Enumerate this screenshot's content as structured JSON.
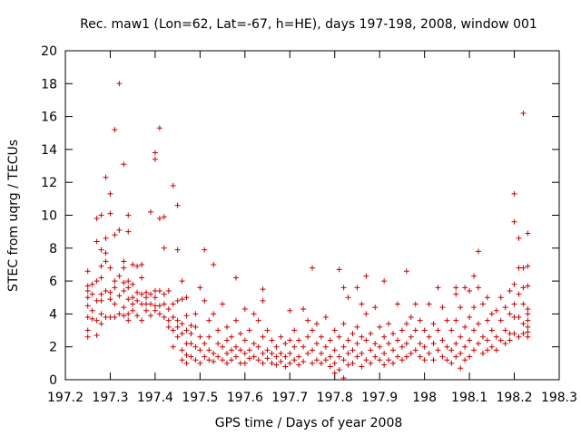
{
  "chart_data": {
    "type": "scatter",
    "title": "Rec. maw1 (Lon=62, Lat=-67, h=HE), days 197-198, 2008, window 001",
    "xlabel": "GPS time / Days of year 2008",
    "ylabel": "STEC from uqrg / TECUs",
    "xlim": [
      197.2,
      198.3
    ],
    "ylim": [
      0,
      20
    ],
    "xticks": [
      197.2,
      197.3,
      197.4,
      197.5,
      197.6,
      197.7,
      197.8,
      197.9,
      198,
      198.1,
      198.2,
      198.3
    ],
    "xtick_labels": [
      "197.2",
      "197.3",
      "197.4",
      "197.5",
      "197.6",
      "197.7",
      "197.8",
      "197.9",
      "198",
      "198.1",
      "198.2",
      "198.3"
    ],
    "yticks": [
      0,
      2,
      4,
      6,
      8,
      10,
      12,
      14,
      16,
      18,
      20
    ],
    "ytick_labels": [
      "0",
      "2",
      "4",
      "6",
      "8",
      "10",
      "12",
      "14",
      "16",
      "18",
      "20"
    ],
    "grid": false,
    "marker": "+",
    "marker_color": "#cc0000",
    "points": [
      [
        197.25,
        6.6
      ],
      [
        197.25,
        5.7
      ],
      [
        197.25,
        5.4
      ],
      [
        197.25,
        5.0
      ],
      [
        197.25,
        4.5
      ],
      [
        197.25,
        3.8
      ],
      [
        197.25,
        3.0
      ],
      [
        197.25,
        2.6
      ],
      [
        197.26,
        5.8
      ],
      [
        197.26,
        5.2
      ],
      [
        197.26,
        4.2
      ],
      [
        197.26,
        3.7
      ],
      [
        197.27,
        9.8
      ],
      [
        197.27,
        8.4
      ],
      [
        197.27,
        6.0
      ],
      [
        197.27,
        4.8
      ],
      [
        197.27,
        3.6
      ],
      [
        197.27,
        2.7
      ],
      [
        197.28,
        10.0
      ],
      [
        197.28,
        7.9
      ],
      [
        197.28,
        6.9
      ],
      [
        197.28,
        6.2
      ],
      [
        197.28,
        5.2
      ],
      [
        197.28,
        4.8
      ],
      [
        197.28,
        4.0
      ],
      [
        197.28,
        3.4
      ],
      [
        197.29,
        12.3
      ],
      [
        197.29,
        8.6
      ],
      [
        197.29,
        7.7
      ],
      [
        197.29,
        7.2
      ],
      [
        197.29,
        5.4
      ],
      [
        197.29,
        3.8
      ],
      [
        197.3,
        11.3
      ],
      [
        197.3,
        10.1
      ],
      [
        197.3,
        6.8
      ],
      [
        197.3,
        5.3
      ],
      [
        197.3,
        4.9
      ],
      [
        197.3,
        3.8
      ],
      [
        197.31,
        15.2
      ],
      [
        197.31,
        8.8
      ],
      [
        197.31,
        6.0
      ],
      [
        197.31,
        5.6
      ],
      [
        197.31,
        4.6
      ],
      [
        197.31,
        3.8
      ],
      [
        197.32,
        18.0
      ],
      [
        197.32,
        9.1
      ],
      [
        197.32,
        6.3
      ],
      [
        197.32,
        5.1
      ],
      [
        197.32,
        4.0
      ],
      [
        197.33,
        13.1
      ],
      [
        197.33,
        7.2
      ],
      [
        197.33,
        6.8
      ],
      [
        197.33,
        5.9
      ],
      [
        197.33,
        5.4
      ],
      [
        197.33,
        4.4
      ],
      [
        197.33,
        3.9
      ],
      [
        197.34,
        10.0
      ],
      [
        197.34,
        9.0
      ],
      [
        197.34,
        6.0
      ],
      [
        197.34,
        5.6
      ],
      [
        197.34,
        4.9
      ],
      [
        197.34,
        4.0
      ],
      [
        197.34,
        3.6
      ],
      [
        197.35,
        7.0
      ],
      [
        197.35,
        5.8
      ],
      [
        197.35,
        5.0
      ],
      [
        197.35,
        4.6
      ],
      [
        197.35,
        4.2
      ],
      [
        197.36,
        6.9
      ],
      [
        197.36,
        5.3
      ],
      [
        197.36,
        4.8
      ],
      [
        197.36,
        3.9
      ],
      [
        197.37,
        7.0
      ],
      [
        197.37,
        6.2
      ],
      [
        197.37,
        5.2
      ],
      [
        197.37,
        4.6
      ],
      [
        197.37,
        3.6
      ],
      [
        197.38,
        5.3
      ],
      [
        197.38,
        5.0
      ],
      [
        197.38,
        4.6
      ],
      [
        197.38,
        4.2
      ],
      [
        197.39,
        10.2
      ],
      [
        197.39,
        5.2
      ],
      [
        197.39,
        4.6
      ],
      [
        197.39,
        3.9
      ],
      [
        197.4,
        13.8
      ],
      [
        197.4,
        13.4
      ],
      [
        197.4,
        5.4
      ],
      [
        197.4,
        5.0
      ],
      [
        197.4,
        4.5
      ],
      [
        197.4,
        4.2
      ],
      [
        197.41,
        15.3
      ],
      [
        197.41,
        9.8
      ],
      [
        197.41,
        5.4
      ],
      [
        197.41,
        4.5
      ],
      [
        197.41,
        4.0
      ],
      [
        197.42,
        9.9
      ],
      [
        197.42,
        8.0
      ],
      [
        197.42,
        5.2
      ],
      [
        197.42,
        4.6
      ],
      [
        197.42,
        3.8
      ],
      [
        197.43,
        5.4
      ],
      [
        197.43,
        4.3
      ],
      [
        197.43,
        3.6
      ],
      [
        197.43,
        3.2
      ],
      [
        197.44,
        11.8
      ],
      [
        197.44,
        4.6
      ],
      [
        197.44,
        3.8
      ],
      [
        197.44,
        3.0
      ],
      [
        197.44,
        2.0
      ],
      [
        197.45,
        10.6
      ],
      [
        197.45,
        7.9
      ],
      [
        197.45,
        4.8
      ],
      [
        197.45,
        3.6
      ],
      [
        197.45,
        3.2
      ],
      [
        197.45,
        2.6
      ],
      [
        197.46,
        6.0
      ],
      [
        197.46,
        4.9
      ],
      [
        197.46,
        3.4
      ],
      [
        197.46,
        2.8
      ],
      [
        197.46,
        1.8
      ],
      [
        197.46,
        1.2
      ],
      [
        197.47,
        5.0
      ],
      [
        197.47,
        3.9
      ],
      [
        197.47,
        3.0
      ],
      [
        197.47,
        2.2
      ],
      [
        197.47,
        1.5
      ],
      [
        197.47,
        1.0
      ],
      [
        197.48,
        3.3
      ],
      [
        197.48,
        2.8
      ],
      [
        197.48,
        2.2
      ],
      [
        197.48,
        1.4
      ],
      [
        197.49,
        4.0
      ],
      [
        197.49,
        3.2
      ],
      [
        197.49,
        2.0
      ],
      [
        197.49,
        1.2
      ],
      [
        197.5,
        5.6
      ],
      [
        197.5,
        2.6
      ],
      [
        197.5,
        1.8
      ],
      [
        197.5,
        1.0
      ],
      [
        197.51,
        7.9
      ],
      [
        197.51,
        4.8
      ],
      [
        197.51,
        2.2
      ],
      [
        197.51,
        1.4
      ],
      [
        197.52,
        3.6
      ],
      [
        197.52,
        2.6
      ],
      [
        197.52,
        1.8
      ],
      [
        197.52,
        1.2
      ],
      [
        197.53,
        7.0
      ],
      [
        197.53,
        4.0
      ],
      [
        197.53,
        1.6
      ],
      [
        197.53,
        1.1
      ],
      [
        197.54,
        3.0
      ],
      [
        197.54,
        2.2
      ],
      [
        197.54,
        1.4
      ],
      [
        197.55,
        4.6
      ],
      [
        197.55,
        2.0
      ],
      [
        197.55,
        1.2
      ],
      [
        197.56,
        3.2
      ],
      [
        197.56,
        2.4
      ],
      [
        197.56,
        1.6
      ],
      [
        197.56,
        1.0
      ],
      [
        197.57,
        2.6
      ],
      [
        197.57,
        1.8
      ],
      [
        197.57,
        1.2
      ],
      [
        197.58,
        6.2
      ],
      [
        197.58,
        3.6
      ],
      [
        197.58,
        2.0
      ],
      [
        197.58,
        1.4
      ],
      [
        197.59,
        2.8
      ],
      [
        197.59,
        1.8
      ],
      [
        197.59,
        1.0
      ],
      [
        197.6,
        4.3
      ],
      [
        197.6,
        2.4
      ],
      [
        197.6,
        1.6
      ],
      [
        197.6,
        1.0
      ],
      [
        197.61,
        3.0
      ],
      [
        197.61,
        1.8
      ],
      [
        197.61,
        1.3
      ],
      [
        197.62,
        4.0
      ],
      [
        197.62,
        2.2
      ],
      [
        197.62,
        1.4
      ],
      [
        197.63,
        3.6
      ],
      [
        197.63,
        2.0
      ],
      [
        197.63,
        1.2
      ],
      [
        197.64,
        5.5
      ],
      [
        197.64,
        4.8
      ],
      [
        197.64,
        2.6
      ],
      [
        197.64,
        1.6
      ],
      [
        197.64,
        1.0
      ],
      [
        197.65,
        3.0
      ],
      [
        197.65,
        1.8
      ],
      [
        197.65,
        1.3
      ],
      [
        197.66,
        2.4
      ],
      [
        197.66,
        1.6
      ],
      [
        197.66,
        1.0
      ],
      [
        197.67,
        2.0
      ],
      [
        197.67,
        1.4
      ],
      [
        197.67,
        0.9
      ],
      [
        197.68,
        2.6
      ],
      [
        197.68,
        1.6
      ],
      [
        197.68,
        1.1
      ],
      [
        197.69,
        2.2
      ],
      [
        197.69,
        1.4
      ],
      [
        197.69,
        0.8
      ],
      [
        197.7,
        4.2
      ],
      [
        197.7,
        2.4
      ],
      [
        197.7,
        1.6
      ],
      [
        197.7,
        1.0
      ],
      [
        197.71,
        3.0
      ],
      [
        197.71,
        2.0
      ],
      [
        197.71,
        1.2
      ],
      [
        197.72,
        2.4
      ],
      [
        197.72,
        1.4
      ],
      [
        197.72,
        0.9
      ],
      [
        197.73,
        4.3
      ],
      [
        197.73,
        2.0
      ],
      [
        197.73,
        1.1
      ],
      [
        197.74,
        3.6
      ],
      [
        197.74,
        2.6
      ],
      [
        197.74,
        1.6
      ],
      [
        197.75,
        6.8
      ],
      [
        197.75,
        3.0
      ],
      [
        197.75,
        1.8
      ],
      [
        197.75,
        1.0
      ],
      [
        197.76,
        3.4
      ],
      [
        197.76,
        2.2
      ],
      [
        197.76,
        1.2
      ],
      [
        197.77,
        2.6
      ],
      [
        197.77,
        1.6
      ],
      [
        197.77,
        1.0
      ],
      [
        197.78,
        3.8
      ],
      [
        197.78,
        2.0
      ],
      [
        197.78,
        1.2
      ],
      [
        197.79,
        2.4
      ],
      [
        197.79,
        1.4
      ],
      [
        197.79,
        0.8
      ],
      [
        197.8,
        3.0
      ],
      [
        197.8,
        1.8
      ],
      [
        197.8,
        1.0
      ],
      [
        197.8,
        0.4
      ],
      [
        197.81,
        6.7
      ],
      [
        197.81,
        2.6
      ],
      [
        197.81,
        1.4
      ],
      [
        197.81,
        0.6
      ],
      [
        197.82,
        5.6
      ],
      [
        197.82,
        3.4
      ],
      [
        197.82,
        2.0
      ],
      [
        197.82,
        1.2
      ],
      [
        197.82,
        0.1
      ],
      [
        197.83,
        5.0
      ],
      [
        197.83,
        2.4
      ],
      [
        197.83,
        1.6
      ],
      [
        197.83,
        0.9
      ],
      [
        197.84,
        2.8
      ],
      [
        197.84,
        1.8
      ],
      [
        197.84,
        1.0
      ],
      [
        197.85,
        5.6
      ],
      [
        197.85,
        3.2
      ],
      [
        197.85,
        2.2
      ],
      [
        197.85,
        1.4
      ],
      [
        197.86,
        4.6
      ],
      [
        197.86,
        2.6
      ],
      [
        197.86,
        1.6
      ],
      [
        197.86,
        0.8
      ],
      [
        197.87,
        6.3
      ],
      [
        197.87,
        4.0
      ],
      [
        197.87,
        2.4
      ],
      [
        197.87,
        1.2
      ],
      [
        197.88,
        2.8
      ],
      [
        197.88,
        1.8
      ],
      [
        197.88,
        1.0
      ],
      [
        197.89,
        4.4
      ],
      [
        197.89,
        2.2
      ],
      [
        197.89,
        1.4
      ],
      [
        197.9,
        3.2
      ],
      [
        197.9,
        2.0
      ],
      [
        197.9,
        1.2
      ],
      [
        197.91,
        6.0
      ],
      [
        197.91,
        2.6
      ],
      [
        197.91,
        1.6
      ],
      [
        197.91,
        0.9
      ],
      [
        197.92,
        3.4
      ],
      [
        197.92,
        2.2
      ],
      [
        197.92,
        1.2
      ],
      [
        197.93,
        2.8
      ],
      [
        197.93,
        1.8
      ],
      [
        197.93,
        1.0
      ],
      [
        197.94,
        4.6
      ],
      [
        197.94,
        2.4
      ],
      [
        197.94,
        1.4
      ],
      [
        197.95,
        3.0
      ],
      [
        197.95,
        2.0
      ],
      [
        197.95,
        1.2
      ],
      [
        197.96,
        6.6
      ],
      [
        197.96,
        3.4
      ],
      [
        197.96,
        2.2
      ],
      [
        197.96,
        1.4
      ],
      [
        197.97,
        3.8
      ],
      [
        197.97,
        2.6
      ],
      [
        197.97,
        1.6
      ],
      [
        197.98,
        4.6
      ],
      [
        197.98,
        3.0
      ],
      [
        197.98,
        1.8
      ],
      [
        197.99,
        3.6
      ],
      [
        197.99,
        2.2
      ],
      [
        197.99,
        1.4
      ],
      [
        198.0,
        3.0
      ],
      [
        198.0,
        2.0
      ],
      [
        198.0,
        1.2
      ],
      [
        198.01,
        4.6
      ],
      [
        198.01,
        2.6
      ],
      [
        198.01,
        1.6
      ],
      [
        198.02,
        3.4
      ],
      [
        198.02,
        2.2
      ],
      [
        198.02,
        1.2
      ],
      [
        198.03,
        5.6
      ],
      [
        198.03,
        3.0
      ],
      [
        198.03,
        1.8
      ],
      [
        198.04,
        4.4
      ],
      [
        198.04,
        2.4
      ],
      [
        198.04,
        1.4
      ],
      [
        198.05,
        3.6
      ],
      [
        198.05,
        2.0
      ],
      [
        198.05,
        1.2
      ],
      [
        198.06,
        3.0
      ],
      [
        198.06,
        1.8
      ],
      [
        198.06,
        1.0
      ],
      [
        198.07,
        5.6
      ],
      [
        198.07,
        5.2
      ],
      [
        198.07,
        3.6
      ],
      [
        198.07,
        2.2
      ],
      [
        198.07,
        1.4
      ],
      [
        198.08,
        4.4
      ],
      [
        198.08,
        2.6
      ],
      [
        198.08,
        1.6
      ],
      [
        198.08,
        0.7
      ],
      [
        198.09,
        5.6
      ],
      [
        198.09,
        3.2
      ],
      [
        198.09,
        2.0
      ],
      [
        198.09,
        1.2
      ],
      [
        198.1,
        5.4
      ],
      [
        198.1,
        3.8
      ],
      [
        198.1,
        2.4
      ],
      [
        198.1,
        1.4
      ],
      [
        198.11,
        6.3
      ],
      [
        198.11,
        4.4
      ],
      [
        198.11,
        3.0
      ],
      [
        198.11,
        1.8
      ],
      [
        198.12,
        7.8
      ],
      [
        198.12,
        5.6
      ],
      [
        198.12,
        3.4
      ],
      [
        198.12,
        2.2
      ],
      [
        198.13,
        4.6
      ],
      [
        198.13,
        2.6
      ],
      [
        198.13,
        1.6
      ],
      [
        198.14,
        5.0
      ],
      [
        198.14,
        3.6
      ],
      [
        198.14,
        2.4
      ],
      [
        198.14,
        1.8
      ],
      [
        198.15,
        4.0
      ],
      [
        198.15,
        3.0
      ],
      [
        198.15,
        2.0
      ],
      [
        198.16,
        4.2
      ],
      [
        198.16,
        2.6
      ],
      [
        198.16,
        1.8
      ],
      [
        198.17,
        5.0
      ],
      [
        198.17,
        3.6
      ],
      [
        198.17,
        2.4
      ],
      [
        198.18,
        4.4
      ],
      [
        198.18,
        3.0
      ],
      [
        198.18,
        2.2
      ],
      [
        198.19,
        5.4
      ],
      [
        198.19,
        4.0
      ],
      [
        198.19,
        2.8
      ],
      [
        198.19,
        2.4
      ],
      [
        198.2,
        11.3
      ],
      [
        198.2,
        9.6
      ],
      [
        198.2,
        5.8
      ],
      [
        198.2,
        4.6
      ],
      [
        198.2,
        3.8
      ],
      [
        198.2,
        2.8
      ],
      [
        198.21,
        8.6
      ],
      [
        198.21,
        6.8
      ],
      [
        198.21,
        5.2
      ],
      [
        198.21,
        3.8
      ],
      [
        198.21,
        2.6
      ],
      [
        198.22,
        16.2
      ],
      [
        198.22,
        6.8
      ],
      [
        198.22,
        5.6
      ],
      [
        198.22,
        4.6
      ],
      [
        198.22,
        3.4
      ],
      [
        198.22,
        2.8
      ],
      [
        198.23,
        8.9
      ],
      [
        198.23,
        6.9
      ],
      [
        198.23,
        5.7
      ],
      [
        198.23,
        4.3
      ],
      [
        198.23,
        4.0
      ],
      [
        198.23,
        3.6
      ],
      [
        198.23,
        3.2
      ],
      [
        198.23,
        2.9
      ],
      [
        198.23,
        2.6
      ]
    ]
  }
}
